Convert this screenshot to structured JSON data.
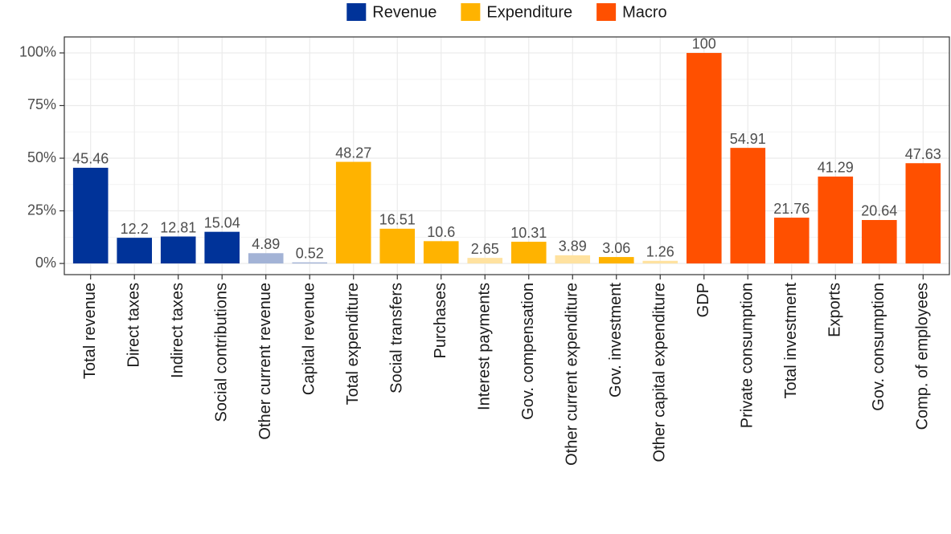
{
  "chart_data": {
    "type": "bar",
    "categories": [
      "Total revenue",
      "Direct taxes",
      "Indirect taxes",
      "Social contributions",
      "Other current revenue",
      "Capital revenue",
      "Total expenditure",
      "Social transfers",
      "Purchases",
      "Interest payments",
      "Gov. compensation",
      "Other current expenditure",
      "Gov. investment",
      "Other capital expenditure",
      "GDP",
      "Private consumption",
      "Total investment",
      "Exports",
      "Gov. consumption",
      "Comp. of employees"
    ],
    "values": [
      45.46,
      12.2,
      12.81,
      15.04,
      4.89,
      0.52,
      48.27,
      16.51,
      10.6,
      2.65,
      10.31,
      3.89,
      3.06,
      1.26,
      100,
      54.91,
      21.76,
      41.29,
      20.64,
      47.63
    ],
    "colors": [
      "#003399",
      "#003399",
      "#003399",
      "#003399",
      "#a3b3d6",
      "#a3b3d6",
      "#ffb300",
      "#ffb300",
      "#ffb300",
      "#ffe2a0",
      "#ffb300",
      "#ffe2a0",
      "#ffb300",
      "#ffe2a0",
      "#ff5000",
      "#ff5000",
      "#ff5000",
      "#ff5000",
      "#ff5000",
      "#ff5000"
    ],
    "legend": [
      {
        "name": "Revenue",
        "color": "#003399"
      },
      {
        "name": "Expenditure",
        "color": "#ffb300"
      },
      {
        "name": "Macro",
        "color": "#ff5000"
      }
    ],
    "legend_position": "top",
    "ylim": [
      -5.3,
      107.6
    ],
    "yticks": [
      {
        "value": 0,
        "label": "0%"
      },
      {
        "value": 25,
        "label": "25%"
      },
      {
        "value": 50,
        "label": "50%"
      },
      {
        "value": 75,
        "label": "75%"
      },
      {
        "value": 100,
        "label": "100%"
      }
    ],
    "grid": true
  }
}
